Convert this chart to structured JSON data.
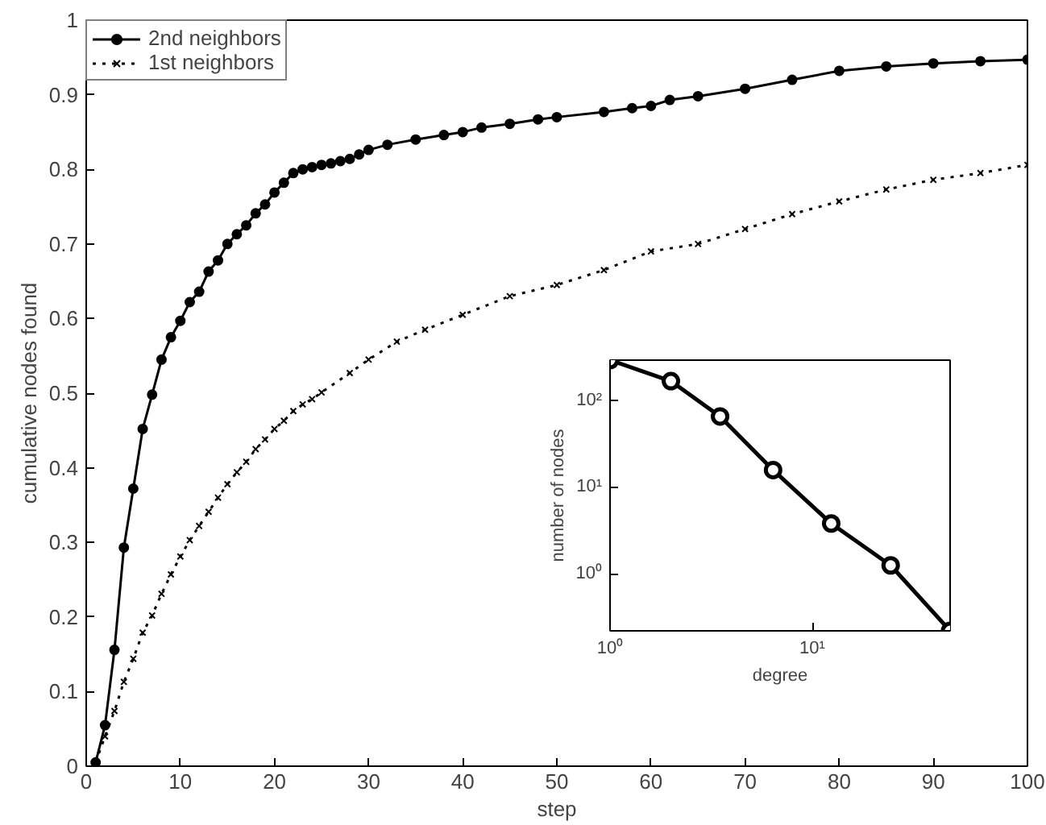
{
  "chart_data": [
    {
      "type": "line",
      "xlabel": "step",
      "ylabel": "cumulative nodes found",
      "xlim": [
        0,
        100
      ],
      "ylim": [
        0,
        1
      ],
      "xticks": [
        0,
        10,
        20,
        30,
        40,
        50,
        60,
        70,
        80,
        90,
        100
      ],
      "yticks": [
        0,
        0.1,
        0.2,
        0.3,
        0.4,
        0.5,
        0.6,
        0.7,
        0.8,
        0.9,
        1
      ],
      "grid": false,
      "legend": "top left",
      "series": [
        {
          "name": "2nd neighbors",
          "color": "#000000",
          "marker": "circle",
          "line_style": "solid",
          "x": [
            1,
            2,
            3,
            4,
            5,
            6,
            7,
            8,
            9,
            10,
            11,
            12,
            13,
            14,
            15,
            16,
            17,
            18,
            19,
            20,
            21,
            22,
            23,
            24,
            25,
            26,
            27,
            28,
            29,
            30,
            32,
            35,
            38,
            40,
            42,
            45,
            48,
            50,
            55,
            58,
            60,
            62,
            65,
            70,
            75,
            80,
            85,
            90,
            95,
            100
          ],
          "values": [
            0.005,
            0.055,
            0.156,
            0.293,
            0.372,
            0.452,
            0.498,
            0.545,
            0.575,
            0.597,
            0.622,
            0.636,
            0.663,
            0.678,
            0.7,
            0.713,
            0.725,
            0.741,
            0.753,
            0.769,
            0.782,
            0.795,
            0.8,
            0.803,
            0.806,
            0.808,
            0.811,
            0.814,
            0.82,
            0.826,
            0.833,
            0.84,
            0.846,
            0.85,
            0.856,
            0.861,
            0.867,
            0.87,
            0.877,
            0.882,
            0.885,
            0.893,
            0.898,
            0.908,
            0.92,
            0.932,
            0.938,
            0.942,
            0.945,
            0.947
          ]
        },
        {
          "name": "1st neighbors",
          "color": "#000000",
          "marker": "cross",
          "line_style": "dotted",
          "x": [
            1,
            2,
            3,
            4,
            5,
            6,
            7,
            8,
            9,
            10,
            11,
            12,
            13,
            14,
            15,
            16,
            17,
            18,
            19,
            20,
            21,
            22,
            23,
            24,
            25,
            28,
            30,
            33,
            36,
            40,
            45,
            50,
            55,
            60,
            65,
            70,
            75,
            80,
            85,
            90,
            95,
            100
          ],
          "values": [
            0.005,
            0.04,
            0.074,
            0.113,
            0.144,
            0.179,
            0.202,
            0.231,
            0.257,
            0.281,
            0.303,
            0.322,
            0.341,
            0.36,
            0.378,
            0.394,
            0.408,
            0.425,
            0.438,
            0.452,
            0.463,
            0.476,
            0.485,
            0.492,
            0.501,
            0.527,
            0.545,
            0.569,
            0.585,
            0.605,
            0.63,
            0.645,
            0.665,
            0.69,
            0.7,
            0.72,
            0.74,
            0.757,
            0.773,
            0.786,
            0.795,
            0.806
          ]
        }
      ]
    },
    {
      "type": "line",
      "xlabel": "degree",
      "ylabel": "number of nodes",
      "log": "xy",
      "xlim": [
        1,
        48
      ],
      "ylim": [
        0.22,
        290
      ],
      "xticks": [
        {
          "value": 1,
          "label": "10⁰"
        },
        {
          "value": 10,
          "label": "10¹"
        }
      ],
      "yticks": [
        {
          "value": 1,
          "label": "10⁰"
        },
        {
          "value": 10,
          "label": "10¹"
        },
        {
          "value": 100,
          "label": "10²"
        }
      ],
      "grid": false,
      "legend": false,
      "series": [
        {
          "color": "#000000",
          "marker": "circle",
          "line_style": "solid",
          "x": [
            1,
            2,
            3.5,
            6.4,
            12.4,
            24.4,
            48
          ],
          "values": [
            290,
            166,
            65,
            15.7,
            3.8,
            1.25,
            0.22
          ]
        }
      ]
    }
  ]
}
